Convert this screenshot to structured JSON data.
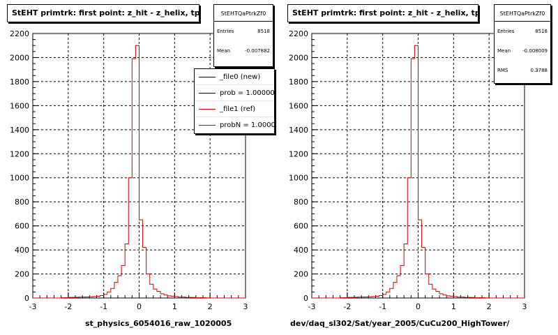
{
  "colors": {
    "new": "#000000",
    "ref": "#cc0000"
  },
  "footer_text": "",
  "chart_data": [
    {
      "type": "histogram",
      "title": "StEHT primtrk: first point: z_hit - z_helix, tpc",
      "xlabel": "st_physics_6054016_raw_1020005",
      "xlim": [
        -3,
        3
      ],
      "ylim": [
        0,
        2200
      ],
      "xticks": [
        -3,
        -2,
        -1,
        0,
        1,
        2,
        3
      ],
      "yticks": [
        0,
        200,
        400,
        600,
        800,
        1000,
        1200,
        1400,
        1600,
        1800,
        2000,
        2200
      ],
      "grid": true,
      "stats": {
        "name": "StEHTQaPtrkZf0",
        "rows": [
          {
            "label": "Entries",
            "value": "8518"
          },
          {
            "label": "Mean",
            "value": "-0.007882"
          }
        ]
      },
      "legend": {
        "placement": "top-right",
        "entries": [
          {
            "label": "_file0 (new)",
            "color": "#000000"
          },
          {
            "label": "prob = 1.000000",
            "color": "#000000"
          },
          {
            "label": "_file1 (ref)",
            "color": "#cc0000"
          },
          {
            "label": "probN = 1.000000",
            "color": "#cc0000"
          }
        ]
      },
      "bin_edges_start": -3,
      "bin_width": 0.1,
      "series": [
        {
          "name": "_file1 (ref)",
          "color": "#cc0000",
          "values": [
            0,
            0,
            0,
            0,
            0,
            0,
            0,
            0,
            2,
            3,
            5,
            5,
            6,
            8,
            8,
            9,
            10,
            12,
            15,
            20,
            30,
            50,
            80,
            130,
            185,
            270,
            450,
            1000,
            1990,
            2100,
            650,
            420,
            200,
            115,
            75,
            55,
            35,
            25,
            18,
            15,
            12,
            8,
            8,
            5,
            5,
            4,
            3,
            3,
            2,
            1,
            0,
            0,
            0,
            0,
            0,
            0,
            0,
            0,
            0,
            0
          ]
        }
      ]
    },
    {
      "type": "histogram",
      "title": "StEHT primtrk: first point: z_hit - z_helix, tpc",
      "xlabel": "dev/daq_sl302/Sat/year_2005/CuCu200_HighTower/",
      "xlim": [
        -3,
        3
      ],
      "ylim": [
        0,
        2200
      ],
      "xticks": [
        -3,
        -2,
        -1,
        0,
        1,
        2,
        3
      ],
      "yticks": [
        0,
        200,
        400,
        600,
        800,
        1000,
        1200,
        1400,
        1600,
        1800,
        2000,
        2200
      ],
      "grid": true,
      "stats": {
        "name": "StEHTQaPtrkZf0",
        "rows": [
          {
            "label": "Entries",
            "value": "8518"
          },
          {
            "label": "Mean",
            "value": "-0.008009"
          },
          {
            "label": "RMS",
            "value": "0.3788"
          }
        ]
      },
      "bin_edges_start": -3,
      "bin_width": 0.1,
      "series": [
        {
          "name": "",
          "color": "#cc0000",
          "values": [
            0,
            0,
            0,
            0,
            0,
            0,
            0,
            0,
            2,
            3,
            5,
            5,
            6,
            8,
            8,
            9,
            10,
            12,
            15,
            20,
            30,
            50,
            80,
            130,
            185,
            270,
            450,
            1000,
            1990,
            2100,
            650,
            420,
            200,
            115,
            75,
            55,
            35,
            25,
            18,
            15,
            12,
            8,
            8,
            5,
            5,
            4,
            3,
            3,
            2,
            1,
            0,
            0,
            0,
            0,
            0,
            0,
            0,
            0,
            0,
            0
          ]
        }
      ]
    }
  ]
}
